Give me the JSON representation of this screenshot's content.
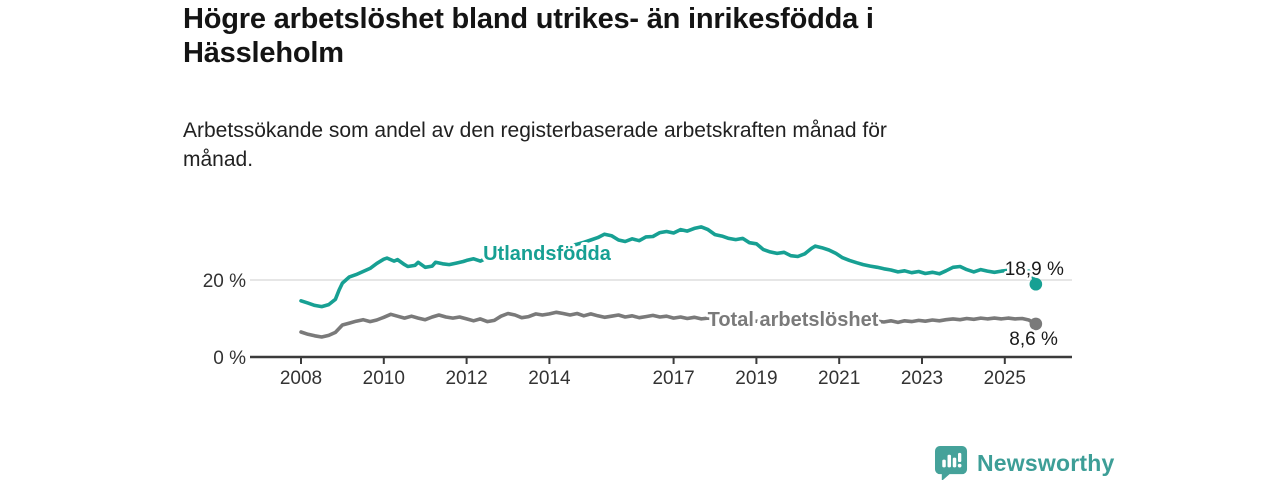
{
  "header": {
    "title_lines": [
      "Högre arbetslöshet bland utrikes- än inrikesfödda i",
      "Hässleholm"
    ],
    "subtitle_lines": [
      "Arbetssökande som andel av den registerbaserade arbetskraften månad för",
      "månad."
    ]
  },
  "footer": {
    "brand": "Newsworthy",
    "icon": "newsworthy-speech-bubble-bar-chart-icon"
  },
  "colors": {
    "accent_teal": "#17a093",
    "series_gray": "#7a7a7a",
    "axis": "#3b3b3b",
    "tick_text": "#333333",
    "gridline": "#d8d8d8",
    "value_text": "#1a1a1a",
    "logo_teal": "#45a29a"
  },
  "chart_data": {
    "type": "line",
    "title": "Högre arbetslöshet bland utrikes- än inrikesfödda i Hässleholm",
    "subtitle": "Arbetssökande som andel av den registerbaserade arbetskraften månad för månad.",
    "xlabel": "",
    "ylabel": "",
    "x_unit": "year (monthly data)",
    "y_unit": "%",
    "ylim": [
      0,
      35
    ],
    "xlim": [
      2006.8,
      2026.6
    ],
    "grid": "single horizontal gridline at 20%",
    "legend_position": "inline labels on lines",
    "x_axis": {
      "ticks": [
        2008,
        2010,
        2012,
        2014,
        2017,
        2019,
        2021,
        2023,
        2025
      ]
    },
    "y_axis": {
      "ticks": [
        {
          "value": 0,
          "label": "0 %"
        },
        {
          "value": 20,
          "label": "20 %",
          "grid": true
        }
      ]
    },
    "series": [
      {
        "name": "Utlandsfödda",
        "color": "#17a093",
        "end_label": "18,9 %",
        "end_value": 18.9,
        "points": [
          [
            2008.0,
            14.6
          ],
          [
            2008.17,
            14.0
          ],
          [
            2008.33,
            13.4
          ],
          [
            2008.5,
            13.1
          ],
          [
            2008.67,
            13.6
          ],
          [
            2008.83,
            15.0
          ],
          [
            2008.92,
            17.4
          ],
          [
            2009.0,
            19.2
          ],
          [
            2009.17,
            20.8
          ],
          [
            2009.33,
            21.4
          ],
          [
            2009.5,
            22.2
          ],
          [
            2009.67,
            23.0
          ],
          [
            2009.83,
            24.3
          ],
          [
            2010.0,
            25.4
          ],
          [
            2010.08,
            25.7
          ],
          [
            2010.25,
            24.9
          ],
          [
            2010.33,
            25.3
          ],
          [
            2010.5,
            24.0
          ],
          [
            2010.58,
            23.5
          ],
          [
            2010.75,
            23.8
          ],
          [
            2010.83,
            24.6
          ],
          [
            2011.0,
            23.3
          ],
          [
            2011.17,
            23.6
          ],
          [
            2011.25,
            24.6
          ],
          [
            2011.42,
            24.2
          ],
          [
            2011.58,
            24.0
          ],
          [
            2011.75,
            24.4
          ],
          [
            2011.92,
            24.8
          ],
          [
            2012.0,
            25.1
          ],
          [
            2012.17,
            25.5
          ],
          [
            2012.33,
            24.9
          ],
          [
            2012.5,
            25.8
          ],
          [
            2012.67,
            25.4
          ],
          [
            2012.83,
            25.9
          ],
          [
            2013.0,
            26.3
          ],
          [
            2013.17,
            26.0
          ],
          [
            2013.33,
            26.6
          ],
          [
            2013.5,
            26.3
          ],
          [
            2013.67,
            27.0
          ],
          [
            2013.83,
            27.4
          ],
          [
            2014.0,
            27.8
          ],
          [
            2014.17,
            28.1
          ],
          [
            2014.33,
            28.5
          ],
          [
            2014.5,
            28.9
          ],
          [
            2014.67,
            29.3
          ],
          [
            2014.83,
            29.8
          ],
          [
            2015.0,
            30.4
          ],
          [
            2015.17,
            31.0
          ],
          [
            2015.33,
            31.9
          ],
          [
            2015.5,
            31.5
          ],
          [
            2015.67,
            30.4
          ],
          [
            2015.83,
            30.0
          ],
          [
            2016.0,
            30.7
          ],
          [
            2016.17,
            30.2
          ],
          [
            2016.33,
            31.2
          ],
          [
            2016.5,
            31.3
          ],
          [
            2016.67,
            32.3
          ],
          [
            2016.83,
            32.6
          ],
          [
            2017.0,
            32.2
          ],
          [
            2017.17,
            33.1
          ],
          [
            2017.33,
            32.7
          ],
          [
            2017.5,
            33.4
          ],
          [
            2017.67,
            33.8
          ],
          [
            2017.83,
            33.1
          ],
          [
            2018.0,
            31.8
          ],
          [
            2018.17,
            31.4
          ],
          [
            2018.33,
            30.8
          ],
          [
            2018.5,
            30.5
          ],
          [
            2018.67,
            30.8
          ],
          [
            2018.83,
            29.7
          ],
          [
            2019.0,
            29.4
          ],
          [
            2019.17,
            27.9
          ],
          [
            2019.33,
            27.3
          ],
          [
            2019.5,
            26.9
          ],
          [
            2019.67,
            27.2
          ],
          [
            2019.83,
            26.3
          ],
          [
            2020.0,
            26.1
          ],
          [
            2020.17,
            26.8
          ],
          [
            2020.33,
            28.2
          ],
          [
            2020.42,
            28.8
          ],
          [
            2020.58,
            28.4
          ],
          [
            2020.75,
            27.8
          ],
          [
            2020.92,
            26.9
          ],
          [
            2021.08,
            25.8
          ],
          [
            2021.25,
            25.1
          ],
          [
            2021.42,
            24.5
          ],
          [
            2021.58,
            24.0
          ],
          [
            2021.75,
            23.6
          ],
          [
            2021.92,
            23.3
          ],
          [
            2022.08,
            22.9
          ],
          [
            2022.25,
            22.6
          ],
          [
            2022.42,
            22.1
          ],
          [
            2022.58,
            22.4
          ],
          [
            2022.75,
            21.9
          ],
          [
            2022.92,
            22.2
          ],
          [
            2023.08,
            21.7
          ],
          [
            2023.25,
            22.0
          ],
          [
            2023.42,
            21.6
          ],
          [
            2023.58,
            22.4
          ],
          [
            2023.75,
            23.3
          ],
          [
            2023.92,
            23.5
          ],
          [
            2024.08,
            22.7
          ],
          [
            2024.25,
            22.1
          ],
          [
            2024.42,
            22.7
          ],
          [
            2024.58,
            22.3
          ],
          [
            2024.75,
            22.0
          ],
          [
            2024.92,
            22.3
          ],
          [
            2025.08,
            22.5
          ],
          [
            2025.25,
            22.0
          ],
          [
            2025.42,
            21.8
          ],
          [
            2025.58,
            22.3
          ],
          [
            2025.67,
            21.2
          ],
          [
            2025.75,
            18.9
          ]
        ]
      },
      {
        "name": "Total arbetslöshet",
        "color": "#7a7a7a",
        "end_label": "8,6 %",
        "end_value": 8.6,
        "points": [
          [
            2008.0,
            6.5
          ],
          [
            2008.17,
            5.9
          ],
          [
            2008.33,
            5.5
          ],
          [
            2008.5,
            5.2
          ],
          [
            2008.67,
            5.6
          ],
          [
            2008.83,
            6.4
          ],
          [
            2009.0,
            8.3
          ],
          [
            2009.17,
            8.8
          ],
          [
            2009.33,
            9.3
          ],
          [
            2009.5,
            9.7
          ],
          [
            2009.67,
            9.2
          ],
          [
            2009.83,
            9.6
          ],
          [
            2010.0,
            10.3
          ],
          [
            2010.17,
            11.1
          ],
          [
            2010.33,
            10.6
          ],
          [
            2010.5,
            10.1
          ],
          [
            2010.67,
            10.6
          ],
          [
            2010.83,
            10.1
          ],
          [
            2011.0,
            9.7
          ],
          [
            2011.17,
            10.4
          ],
          [
            2011.33,
            10.9
          ],
          [
            2011.5,
            10.4
          ],
          [
            2011.67,
            10.1
          ],
          [
            2011.83,
            10.4
          ],
          [
            2012.0,
            9.9
          ],
          [
            2012.17,
            9.4
          ],
          [
            2012.33,
            9.9
          ],
          [
            2012.5,
            9.2
          ],
          [
            2012.67,
            9.5
          ],
          [
            2012.83,
            10.6
          ],
          [
            2013.0,
            11.3
          ],
          [
            2013.17,
            10.9
          ],
          [
            2013.33,
            10.2
          ],
          [
            2013.5,
            10.5
          ],
          [
            2013.67,
            11.2
          ],
          [
            2013.83,
            10.9
          ],
          [
            2014.0,
            11.2
          ],
          [
            2014.17,
            11.6
          ],
          [
            2014.33,
            11.3
          ],
          [
            2014.5,
            10.9
          ],
          [
            2014.67,
            11.3
          ],
          [
            2014.83,
            10.7
          ],
          [
            2015.0,
            11.2
          ],
          [
            2015.17,
            10.7
          ],
          [
            2015.33,
            10.3
          ],
          [
            2015.5,
            10.6
          ],
          [
            2015.67,
            10.9
          ],
          [
            2015.83,
            10.4
          ],
          [
            2016.0,
            10.7
          ],
          [
            2016.17,
            10.2
          ],
          [
            2016.33,
            10.5
          ],
          [
            2016.5,
            10.8
          ],
          [
            2016.67,
            10.4
          ],
          [
            2016.83,
            10.6
          ],
          [
            2017.0,
            10.1
          ],
          [
            2017.17,
            10.4
          ],
          [
            2017.33,
            10.0
          ],
          [
            2017.5,
            10.3
          ],
          [
            2017.67,
            9.9
          ],
          [
            2017.83,
            10.1
          ],
          [
            2018.0,
            9.8
          ],
          [
            2018.25,
            9.5
          ],
          [
            2018.5,
            9.4
          ],
          [
            2018.75,
            9.3
          ],
          [
            2019.0,
            9.3
          ],
          [
            2019.25,
            9.1
          ],
          [
            2019.5,
            9.2
          ],
          [
            2019.75,
            9.4
          ],
          [
            2020.0,
            9.7
          ],
          [
            2020.25,
            10.4
          ],
          [
            2020.42,
            10.9
          ],
          [
            2020.67,
            10.7
          ],
          [
            2020.92,
            10.4
          ],
          [
            2021.17,
            10.0
          ],
          [
            2021.42,
            9.7
          ],
          [
            2021.67,
            9.5
          ],
          [
            2021.92,
            9.3
          ],
          [
            2022.08,
            9.1
          ],
          [
            2022.25,
            9.4
          ],
          [
            2022.42,
            9.0
          ],
          [
            2022.58,
            9.4
          ],
          [
            2022.75,
            9.2
          ],
          [
            2022.92,
            9.5
          ],
          [
            2023.08,
            9.3
          ],
          [
            2023.25,
            9.6
          ],
          [
            2023.42,
            9.4
          ],
          [
            2023.58,
            9.7
          ],
          [
            2023.75,
            9.9
          ],
          [
            2023.92,
            9.7
          ],
          [
            2024.08,
            10.0
          ],
          [
            2024.25,
            9.8
          ],
          [
            2024.42,
            10.1
          ],
          [
            2024.58,
            9.9
          ],
          [
            2024.75,
            10.1
          ],
          [
            2024.92,
            9.9
          ],
          [
            2025.08,
            10.1
          ],
          [
            2025.25,
            9.9
          ],
          [
            2025.42,
            10.0
          ],
          [
            2025.58,
            9.6
          ],
          [
            2025.75,
            8.6
          ]
        ]
      }
    ]
  }
}
